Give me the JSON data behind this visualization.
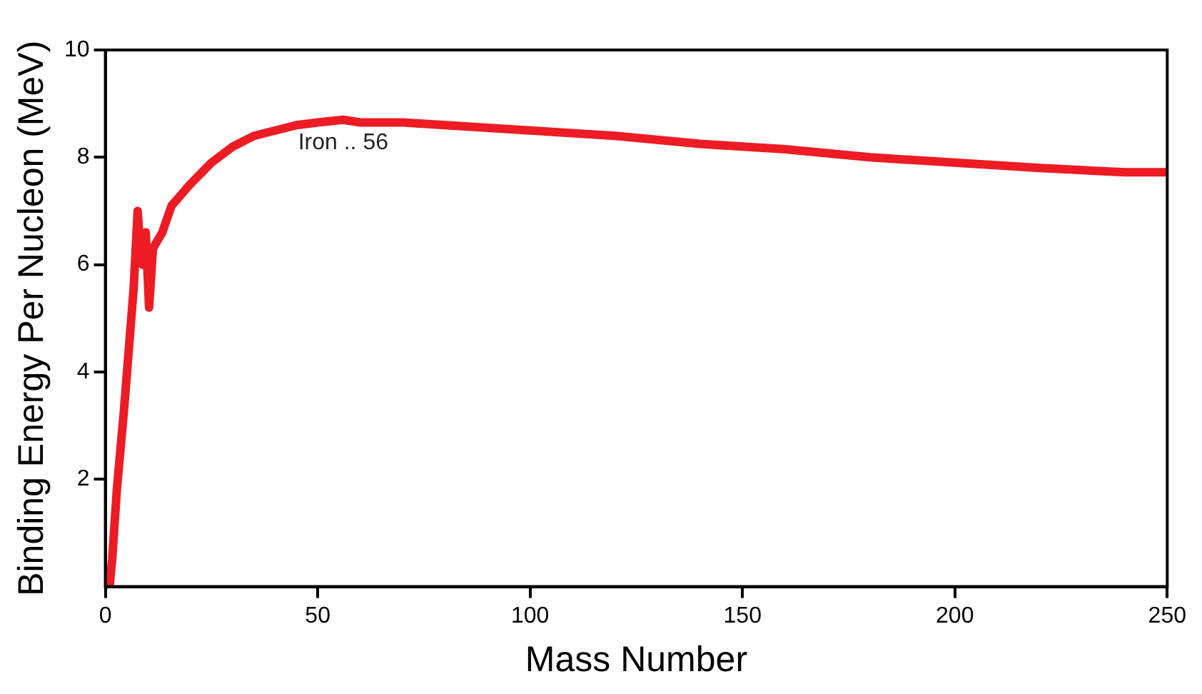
{
  "chart_data": {
    "type": "line",
    "xlabel": "Mass Number",
    "ylabel": "Binding Energy Per Nucleon (MeV)",
    "x": [
      1,
      1.6,
      2.7,
      4.4,
      5.5,
      6.7,
      7.6,
      8.3,
      8.8,
      9.5,
      10.3,
      11.2,
      13.4,
      15.6,
      20,
      25,
      30,
      35,
      40,
      45,
      50,
      56,
      60,
      70,
      80,
      90,
      100,
      120,
      140,
      160,
      180,
      200,
      220,
      240,
      250
    ],
    "series": [
      {
        "color": "#ed1c24",
        "values": [
          0,
          0.5,
          1.8,
          3.3,
          4.4,
          5.6,
          7.0,
          6.2,
          6.0,
          6.6,
          5.2,
          6.3,
          6.6,
          7.1,
          7.5,
          7.9,
          8.2,
          8.4,
          8.5,
          8.6,
          8.65,
          8.7,
          8.65,
          8.65,
          8.6,
          8.55,
          8.5,
          8.4,
          8.25,
          8.15,
          8.0,
          7.9,
          7.8,
          7.72,
          7.72
        ]
      }
    ],
    "xlim": [
      0,
      250
    ],
    "xticks": [
      0,
      50,
      100,
      150,
      200,
      250
    ],
    "ylim": [
      0,
      10
    ],
    "yticks": [
      2,
      4,
      6,
      8,
      10
    ],
    "annotations": [
      {
        "text": "Iron .. 56",
        "x": 56,
        "y": 8.7
      }
    ],
    "grid": false,
    "legend": false,
    "marker": "none",
    "line_style": "solid"
  }
}
